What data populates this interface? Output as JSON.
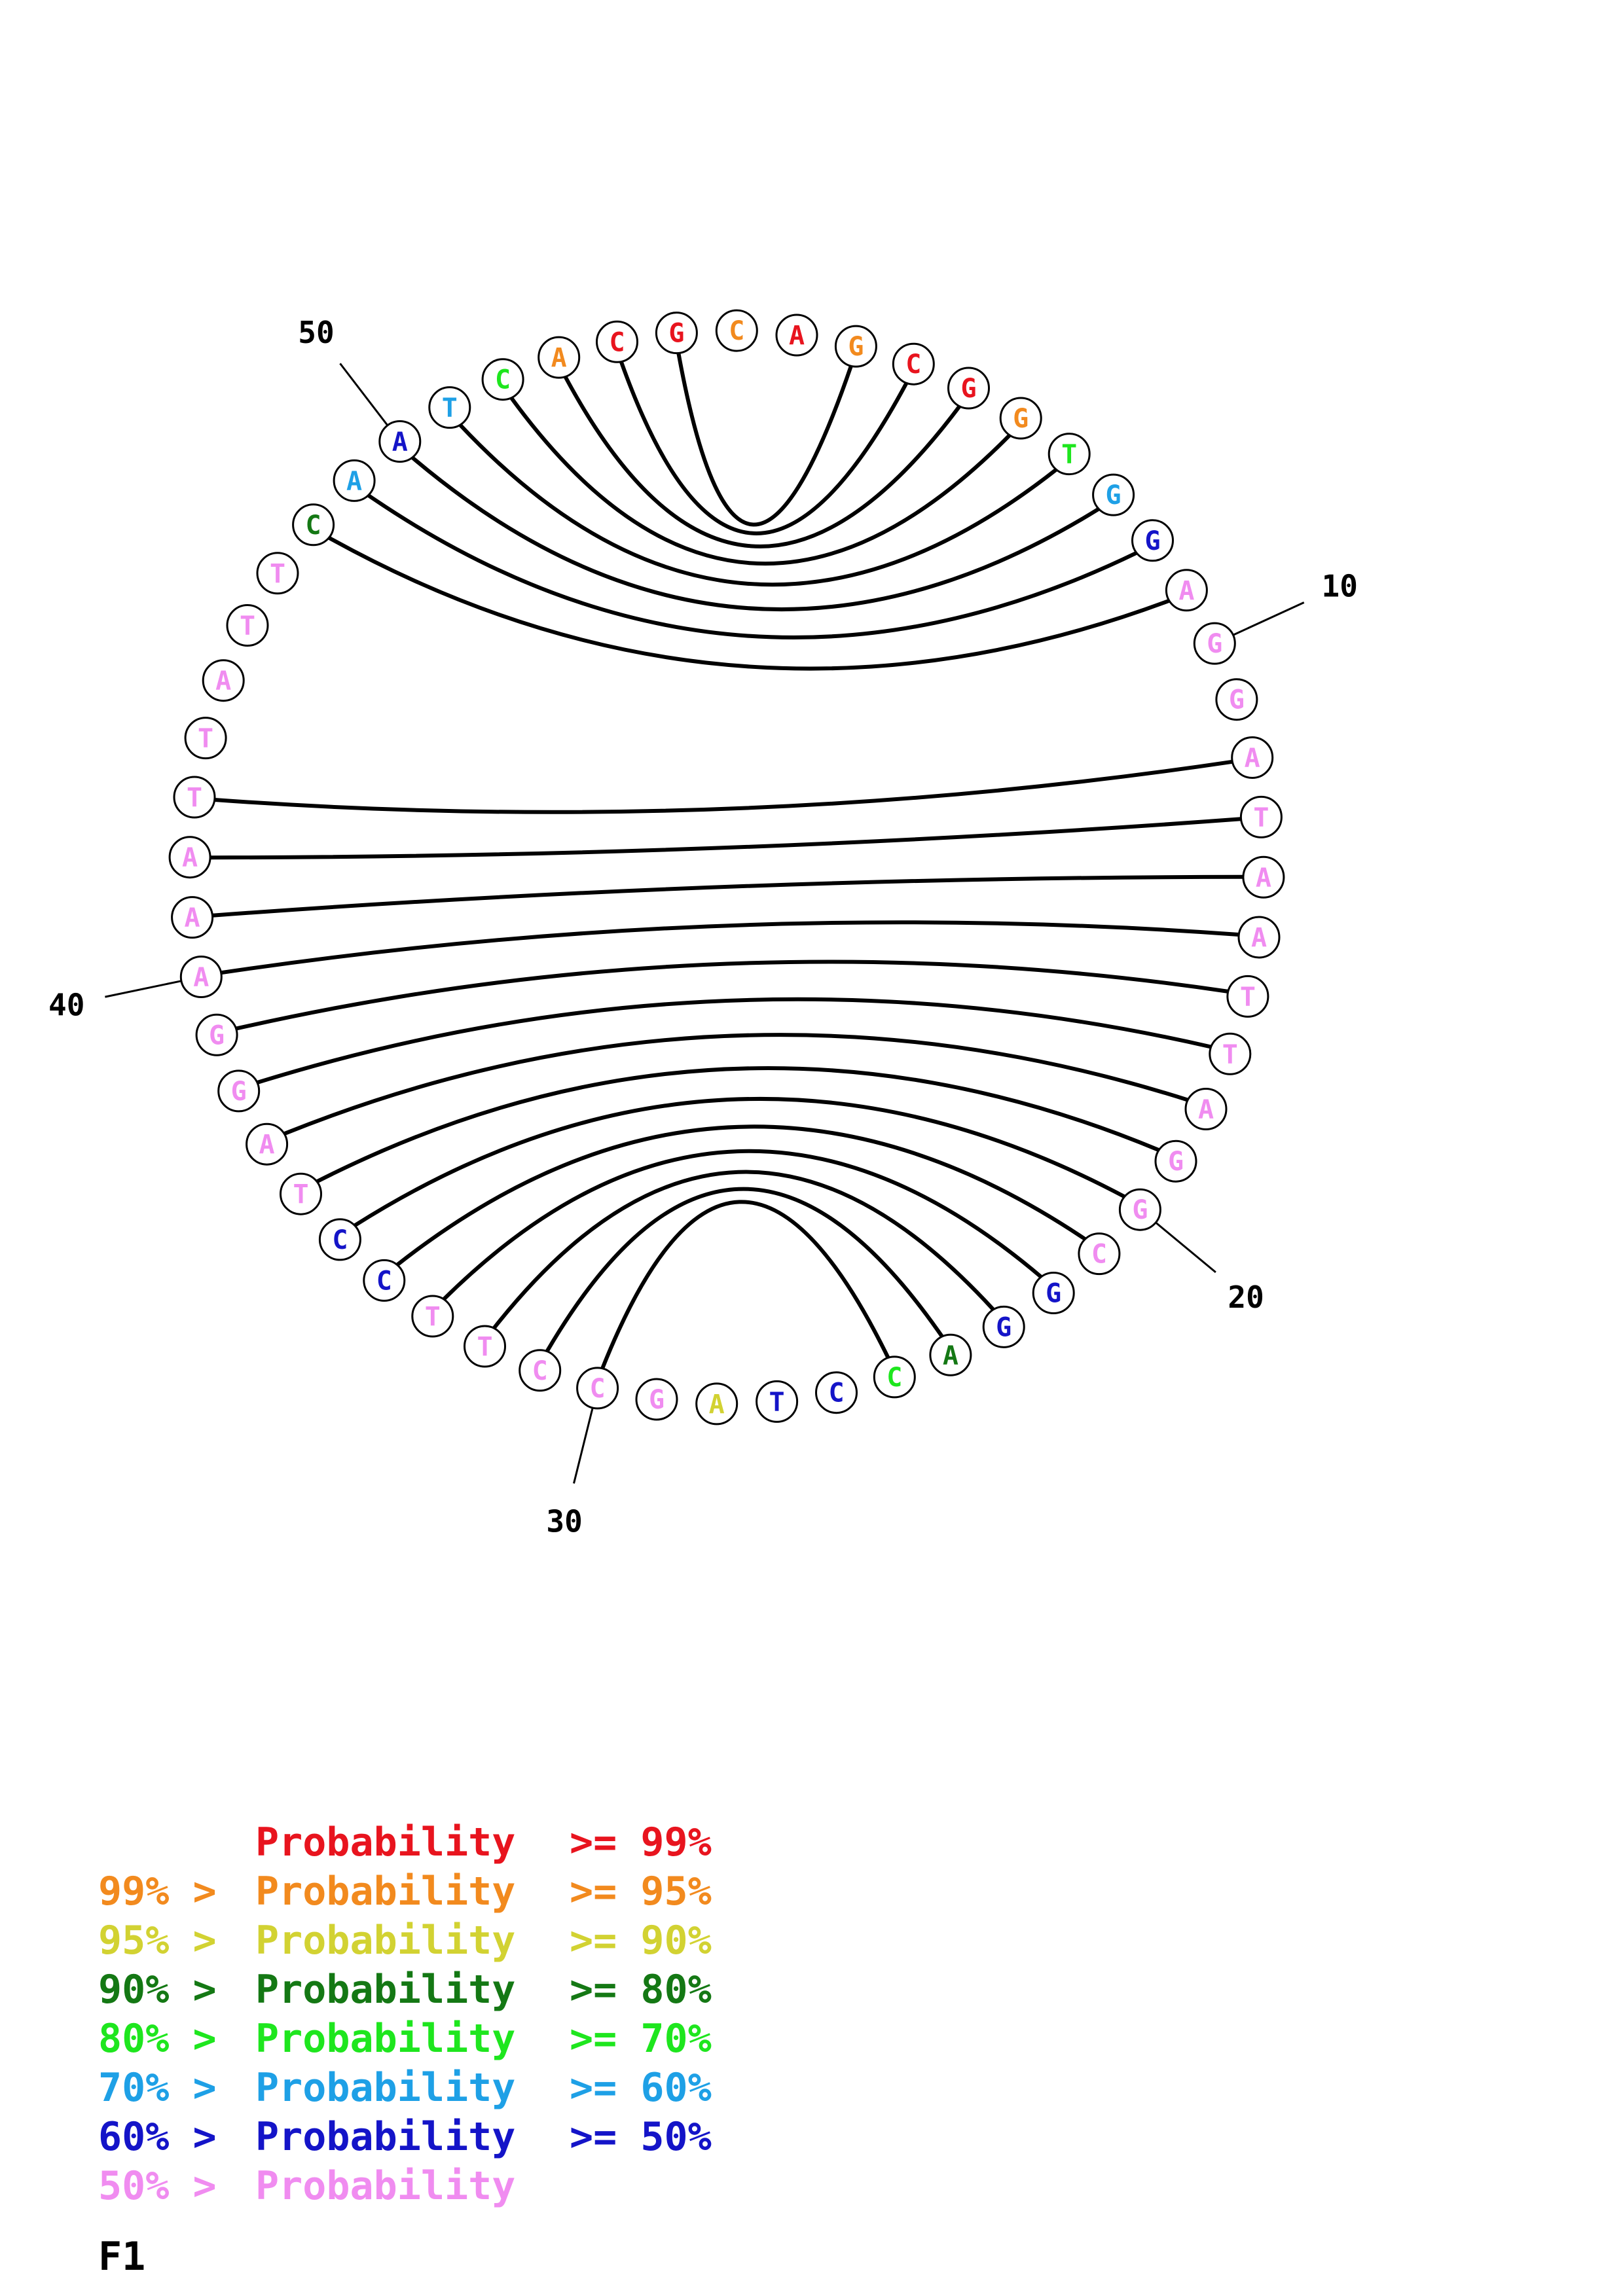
{
  "title": "F1",
  "sequence": "AGCGGTGGAGGATAATTAGGCGGACCTAGCCTTCCTAGGAAATTATTCAATCACGC",
  "pairs": [
    [
      2,
      55
    ],
    [
      3,
      54
    ],
    [
      4,
      53
    ],
    [
      5,
      52
    ],
    [
      6,
      51
    ],
    [
      7,
      50
    ],
    [
      8,
      49
    ],
    [
      9,
      48
    ],
    [
      12,
      43
    ],
    [
      13,
      42
    ],
    [
      14,
      41
    ],
    [
      15,
      40
    ],
    [
      16,
      39
    ],
    [
      17,
      38
    ],
    [
      18,
      37
    ],
    [
      19,
      36
    ],
    [
      20,
      35
    ],
    [
      21,
      34
    ],
    [
      22,
      33
    ],
    [
      23,
      32
    ],
    [
      24,
      31
    ],
    [
      25,
      30
    ]
  ],
  "tick_labels": [
    "10",
    "20",
    "30",
    "40",
    "50"
  ],
  "colors": {
    "p99": "#e8141e",
    "p95": "#f28a1e",
    "p90": "#d2d232",
    "p80": "#147814",
    "p70": "#1ee61e",
    "p60": "#1ea0e6",
    "p50": "#1414c8",
    "lt50": "#f08cf0"
  },
  "nucleotide_levels": [
    "p99",
    "p95",
    "p99",
    "p99",
    "p95",
    "p70",
    "p60",
    "p50",
    "lt50",
    "lt50",
    "lt50",
    "lt50",
    "lt50",
    "lt50",
    "lt50",
    "lt50",
    "lt50",
    "lt50",
    "lt50",
    "lt50",
    "lt50",
    "p50",
    "p50",
    "p80",
    "p70",
    "p50",
    "p50",
    "p90",
    "lt50",
    "lt50",
    "lt50",
    "lt50",
    "lt50",
    "p50",
    "p50",
    "lt50",
    "lt50",
    "lt50",
    "lt50",
    "lt50",
    "lt50",
    "lt50",
    "lt50",
    "lt50",
    "lt50",
    "lt50",
    "lt50",
    "p80",
    "p60",
    "p50",
    "p60",
    "p70",
    "p95",
    "p99",
    "p99",
    "p95"
  ],
  "legend": [
    {
      "prefix": "",
      "label": "Probability",
      "suffix": ">= 99%",
      "level": "p99"
    },
    {
      "prefix": "99% >",
      "label": "Probability",
      "suffix": ">= 95%",
      "level": "p95"
    },
    {
      "prefix": "95% >",
      "label": "Probability",
      "suffix": ">= 90%",
      "level": "p90"
    },
    {
      "prefix": "90% >",
      "label": "Probability",
      "suffix": ">= 80%",
      "level": "p80"
    },
    {
      "prefix": "80% >",
      "label": "Probability",
      "suffix": ">= 70%",
      "level": "p70"
    },
    {
      "prefix": "70% >",
      "label": "Probability",
      "suffix": ">= 60%",
      "level": "p60"
    },
    {
      "prefix": "60% >",
      "label": "Probability",
      "suffix": ">= 50%",
      "level": "p50"
    },
    {
      "prefix": "50% >",
      "label": "Probability",
      "suffix": "",
      "level": "lt50"
    }
  ]
}
